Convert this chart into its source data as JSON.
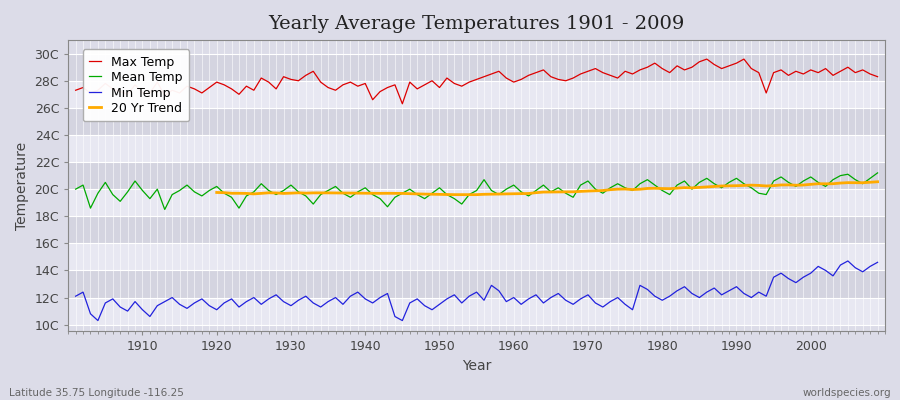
{
  "title": "Yearly Average Temperatures 1901 - 2009",
  "xlabel": "Year",
  "ylabel": "Temperature",
  "years_start": 1901,
  "years_end": 2009,
  "yticks": [
    10,
    12,
    14,
    16,
    18,
    20,
    22,
    24,
    26,
    28,
    30
  ],
  "ytick_labels": [
    "10C",
    "12C",
    "14C",
    "16C",
    "18C",
    "20C",
    "22C",
    "24C",
    "26C",
    "28C",
    "30C"
  ],
  "ylim": [
    9.5,
    31.0
  ],
  "xlim": [
    1900,
    2010
  ],
  "xtick_years": [
    1910,
    1920,
    1930,
    1940,
    1950,
    1960,
    1970,
    1980,
    1990,
    2000
  ],
  "legend_labels": [
    "Max Temp",
    "Mean Temp",
    "Min Temp",
    "20 Yr Trend"
  ],
  "line_colors": [
    "#dd0000",
    "#00aa00",
    "#2222dd",
    "#ffaa00"
  ],
  "bg_light": "#e8e8ee",
  "bg_dark": "#d8d8e0",
  "grid_color": "#ffffff",
  "title_fontsize": 14,
  "axis_label_fontsize": 10,
  "tick_label_fontsize": 9,
  "legend_fontsize": 9,
  "footer_left": "Latitude 35.75 Longitude -116.25",
  "footer_right": "worldspecies.org",
  "max_temp_data": [
    27.3,
    27.5,
    27.1,
    27.3,
    27.8,
    27.4,
    27.2,
    27.0,
    27.7,
    27.1,
    27.1,
    27.9,
    26.9,
    27.3,
    27.1,
    27.6,
    27.4,
    27.1,
    27.5,
    27.9,
    27.7,
    27.4,
    27.0,
    27.6,
    27.3,
    28.2,
    27.9,
    27.4,
    28.3,
    28.1,
    28.0,
    28.4,
    28.7,
    27.9,
    27.5,
    27.3,
    27.7,
    27.9,
    27.6,
    27.8,
    26.6,
    27.2,
    27.5,
    27.7,
    26.3,
    27.9,
    27.4,
    27.7,
    28.0,
    27.5,
    28.2,
    27.8,
    27.6,
    27.9,
    28.1,
    28.3,
    28.5,
    28.7,
    28.2,
    27.9,
    28.1,
    28.4,
    28.6,
    28.8,
    28.3,
    28.1,
    28.0,
    28.2,
    28.5,
    28.7,
    28.9,
    28.6,
    28.4,
    28.2,
    28.7,
    28.5,
    28.8,
    29.0,
    29.3,
    28.9,
    28.6,
    29.1,
    28.8,
    29.0,
    29.4,
    29.6,
    29.2,
    28.9,
    29.1,
    29.3,
    29.6,
    28.9,
    28.6,
    27.1,
    28.6,
    28.8,
    28.4,
    28.7,
    28.5,
    28.8,
    28.6,
    28.9,
    28.4,
    28.7,
    29.0,
    28.6,
    28.8,
    28.5,
    28.3
  ],
  "mean_temp_data": [
    20.0,
    20.3,
    18.6,
    19.7,
    20.5,
    19.6,
    19.1,
    19.8,
    20.6,
    19.9,
    19.3,
    20.0,
    18.5,
    19.6,
    19.9,
    20.3,
    19.8,
    19.5,
    19.9,
    20.2,
    19.7,
    19.4,
    18.6,
    19.5,
    19.8,
    20.4,
    19.9,
    19.6,
    19.9,
    20.3,
    19.8,
    19.5,
    18.9,
    19.6,
    19.9,
    20.2,
    19.7,
    19.4,
    19.8,
    20.1,
    19.6,
    19.3,
    18.7,
    19.4,
    19.7,
    20.0,
    19.6,
    19.3,
    19.7,
    20.1,
    19.6,
    19.3,
    18.9,
    19.6,
    19.9,
    20.7,
    19.9,
    19.6,
    20.0,
    20.3,
    19.8,
    19.5,
    19.9,
    20.3,
    19.8,
    20.1,
    19.7,
    19.4,
    20.3,
    20.6,
    20.0,
    19.7,
    20.1,
    20.4,
    20.1,
    19.9,
    20.4,
    20.7,
    20.3,
    19.9,
    19.6,
    20.3,
    20.6,
    20.0,
    20.5,
    20.8,
    20.4,
    20.1,
    20.5,
    20.8,
    20.4,
    20.1,
    19.7,
    19.6,
    20.6,
    20.9,
    20.5,
    20.2,
    20.6,
    20.9,
    20.5,
    20.2,
    20.7,
    21.0,
    21.1,
    20.7,
    20.4,
    20.8,
    21.2
  ],
  "min_temp_data": [
    12.1,
    12.4,
    10.8,
    10.3,
    11.6,
    11.9,
    11.3,
    11.0,
    11.7,
    11.1,
    10.6,
    11.4,
    11.7,
    12.0,
    11.5,
    11.2,
    11.6,
    11.9,
    11.4,
    11.1,
    11.6,
    11.9,
    11.3,
    11.7,
    12.0,
    11.5,
    11.9,
    12.2,
    11.7,
    11.4,
    11.8,
    12.1,
    11.6,
    11.3,
    11.7,
    12.0,
    11.5,
    12.1,
    12.4,
    11.9,
    11.6,
    12.0,
    12.3,
    10.6,
    10.3,
    11.6,
    11.9,
    11.4,
    11.1,
    11.5,
    11.9,
    12.2,
    11.6,
    12.1,
    12.4,
    11.8,
    12.9,
    12.5,
    11.7,
    12.0,
    11.5,
    11.9,
    12.2,
    11.6,
    12.0,
    12.3,
    11.8,
    11.5,
    11.9,
    12.2,
    11.6,
    11.3,
    11.7,
    12.0,
    11.5,
    11.1,
    12.9,
    12.6,
    12.1,
    11.8,
    12.1,
    12.5,
    12.8,
    12.3,
    12.0,
    12.4,
    12.7,
    12.2,
    12.5,
    12.8,
    12.3,
    12.0,
    12.4,
    12.1,
    13.5,
    13.8,
    13.4,
    13.1,
    13.5,
    13.8,
    14.3,
    14.0,
    13.6,
    14.4,
    14.7,
    14.2,
    13.9,
    14.3,
    14.6
  ]
}
